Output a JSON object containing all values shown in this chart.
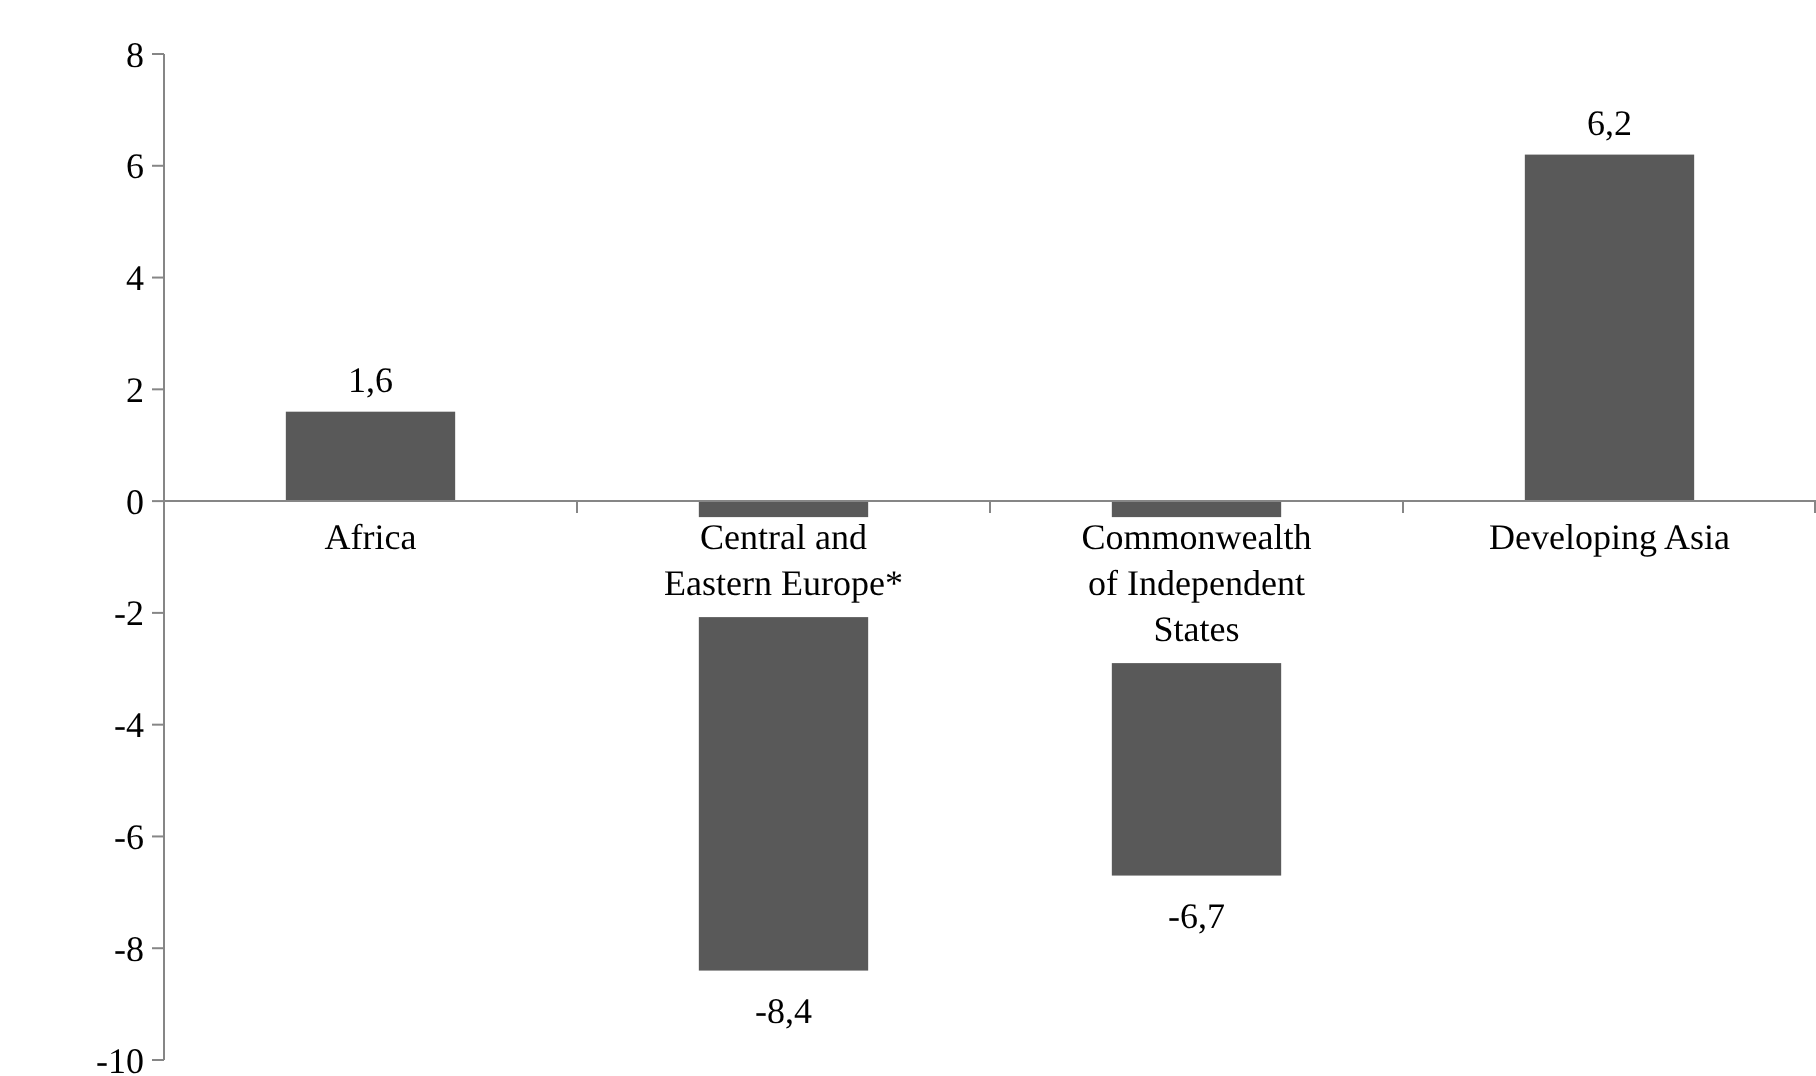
{
  "chart_data": {
    "type": "bar",
    "categories": [
      "Africa",
      "Central and Eastern Europe*",
      "Commonwealth of Independent States",
      "Developing Asia"
    ],
    "values": [
      1.6,
      -8.4,
      -6.7,
      6.2
    ],
    "value_labels": [
      "1,6",
      "-8,4",
      "-6,7",
      "6,2"
    ],
    "color": "#595959",
    "ylim": [
      -10,
      8
    ],
    "yticks": [
      -10,
      -8,
      -6,
      -4,
      -2,
      0,
      2,
      4,
      6,
      8
    ],
    "grid": false,
    "legend": false
  }
}
